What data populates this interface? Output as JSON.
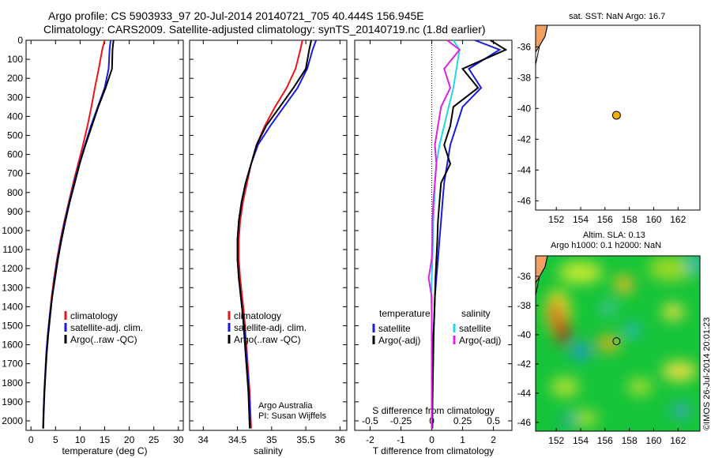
{
  "title_line1": "Argo profile: CS 5903933_97 20-Jul-2014 20140721_705 40.444S 156.945E",
  "title_line2": "Climatology: CARS2009. Satellite-adjusted climatology: synTS_20140719.nc (1.8d earlier)",
  "sst_title": "sat. SST: NaN Argo: 16.7",
  "sla_title1": "Altim. SLA: 0.13",
  "sla_title2": "Argo h1000: 0.1 h2000: NaN",
  "timestamp": "©IMOS 26-Jul-2014 20:01:23",
  "credits": {
    "line1": "Argo Australia",
    "line2": "PI: Susan Wijffels"
  },
  "colors": {
    "clim": "#e8141a",
    "sat": "#1a1ae0",
    "argo": "#000000",
    "sat_s": "#22d6e6",
    "argo_s": "#e020e0",
    "land": "#f0a060"
  },
  "chart_data": [
    {
      "type": "line",
      "xlabel": "temperature (deg C)",
      "xlim": [
        -1,
        31
      ],
      "xticks": [
        0,
        5,
        10,
        15,
        20,
        25,
        30
      ],
      "ylim": [
        2050,
        0
      ],
      "yticks": [
        0,
        100,
        200,
        300,
        400,
        500,
        600,
        700,
        800,
        900,
        1000,
        1100,
        1200,
        1300,
        1400,
        1500,
        1600,
        1700,
        1800,
        1900,
        2000
      ],
      "legend": [
        "climatology",
        "satellite-adj. clim.",
        "Argo(..raw -QC)"
      ],
      "series": [
        {
          "name": "climatology",
          "color": "clim",
          "x": [
            15.0,
            14.5,
            13.8,
            13.0,
            12.3,
            11.5,
            10.6,
            9.6,
            8.6,
            7.7,
            6.8,
            6.0,
            5.3,
            4.7,
            4.2,
            3.8,
            3.4,
            3.1,
            2.9,
            2.7,
            2.55,
            2.45
          ],
          "y": [
            0,
            50,
            150,
            250,
            350,
            450,
            550,
            650,
            750,
            850,
            950,
            1050,
            1150,
            1250,
            1350,
            1450,
            1550,
            1650,
            1750,
            1850,
            1950,
            2040
          ]
        },
        {
          "name": "satellite-adj. clim.",
          "color": "sat",
          "x": [
            16.2,
            16.0,
            15.8,
            15.0,
            13.6,
            12.2,
            11.0,
            9.8,
            8.8,
            7.8,
            6.9,
            6.1,
            5.4,
            4.8,
            4.3,
            3.8,
            3.4,
            3.1,
            2.9,
            2.7,
            2.55,
            2.45
          ],
          "y": [
            0,
            50,
            150,
            250,
            350,
            450,
            550,
            650,
            750,
            850,
            950,
            1050,
            1150,
            1250,
            1350,
            1450,
            1550,
            1650,
            1750,
            1850,
            1950,
            2040
          ]
        },
        {
          "name": "Argo(..raw -QC)",
          "color": "argo",
          "x": [
            16.8,
            16.6,
            16.5,
            15.2,
            13.7,
            12.4,
            11.1,
            9.9,
            8.9,
            7.9,
            7.0,
            6.2,
            5.5,
            4.9,
            4.3,
            3.9,
            3.5,
            3.2,
            2.95,
            2.75,
            2.6,
            2.5
          ],
          "y": [
            0,
            50,
            150,
            250,
            350,
            450,
            550,
            650,
            750,
            850,
            950,
            1050,
            1150,
            1250,
            1350,
            1450,
            1550,
            1650,
            1750,
            1850,
            1950,
            2040
          ]
        }
      ]
    },
    {
      "type": "line",
      "xlabel": "salinity",
      "xlim": [
        33.8,
        36.1
      ],
      "xticks": [
        34,
        34.5,
        35,
        35.5,
        36
      ],
      "ylim": [
        2050,
        0
      ],
      "legend": [
        "climatology",
        "satellite-adj. clim.",
        "Argo(..raw -QC)"
      ],
      "series": [
        {
          "name": "climatology",
          "color": "clim",
          "x": [
            35.45,
            35.42,
            35.35,
            35.22,
            35.05,
            34.9,
            34.78,
            34.7,
            34.64,
            34.58,
            34.54,
            34.52,
            34.52,
            34.54,
            34.57,
            34.6,
            34.62,
            34.64,
            34.66,
            34.68,
            34.69,
            34.7
          ],
          "y": [
            0,
            50,
            150,
            250,
            350,
            450,
            550,
            650,
            750,
            850,
            950,
            1050,
            1150,
            1250,
            1350,
            1450,
            1550,
            1650,
            1750,
            1850,
            1950,
            2040
          ]
        },
        {
          "name": "satellite-adj. clim.",
          "color": "sat",
          "x": [
            35.65,
            35.6,
            35.52,
            35.38,
            35.18,
            34.98,
            34.8,
            34.7,
            34.62,
            34.56,
            34.52,
            34.5,
            34.5,
            34.52,
            34.55,
            34.58,
            34.61,
            34.63,
            34.65,
            34.67,
            34.68,
            34.69
          ],
          "y": [
            0,
            50,
            150,
            250,
            350,
            450,
            550,
            650,
            750,
            850,
            950,
            1050,
            1150,
            1250,
            1350,
            1450,
            1550,
            1650,
            1750,
            1850,
            1950,
            2040
          ]
        },
        {
          "name": "Argo(..raw -QC)",
          "color": "argo",
          "x": [
            35.58,
            35.55,
            35.5,
            35.32,
            35.12,
            34.92,
            34.78,
            34.7,
            34.62,
            34.56,
            34.52,
            34.5,
            34.5,
            34.52,
            34.55,
            34.58,
            34.6,
            34.62,
            34.64,
            34.66,
            34.67,
            34.68
          ],
          "y": [
            0,
            50,
            150,
            250,
            350,
            450,
            550,
            650,
            750,
            850,
            950,
            1050,
            1150,
            1250,
            1350,
            1450,
            1550,
            1650,
            1750,
            1850,
            1950,
            2040
          ]
        }
      ]
    },
    {
      "type": "line",
      "xlabel": "T difference from climatology",
      "xlabel_top": "S difference from climatology",
      "xlim": [
        -2.5,
        2.6
      ],
      "xticks": [
        -2,
        -1,
        0,
        1,
        2
      ],
      "xticks_top": [
        "-0.5",
        "-0.25",
        "0",
        "0.25",
        "0.5"
      ],
      "ylim": [
        2050,
        0
      ],
      "legend_titles": [
        "temperature",
        "salinity"
      ],
      "legend": [
        "satellite",
        "Argo(-adj)",
        "satellite",
        "Argo(-adj)"
      ],
      "series": [
        {
          "name": "satellite",
          "color": "sat",
          "x": [
            1.4,
            2.2,
            1.2,
            1.6,
            1.0,
            0.8,
            0.6,
            0.5,
            0.4,
            0.35,
            0.3,
            0.25,
            0.2,
            0.15,
            0.1,
            0.08,
            0.05,
            0.05,
            0.03,
            0.02,
            0.02,
            0.02
          ],
          "y": [
            0,
            50,
            150,
            250,
            350,
            450,
            550,
            650,
            750,
            850,
            950,
            1050,
            1150,
            1250,
            1350,
            1450,
            1550,
            1650,
            1750,
            1850,
            1950,
            2040
          ]
        },
        {
          "name": "Argo(-adj)",
          "color": "argo",
          "x": [
            1.9,
            2.4,
            1.0,
            1.5,
            0.7,
            0.6,
            0.4,
            0.6,
            0.3,
            0.25,
            0.2,
            0.18,
            0.15,
            0.12,
            0.1,
            0.08,
            0.06,
            0.05,
            0.04,
            0.03,
            0.02,
            0.02
          ],
          "y": [
            0,
            50,
            150,
            250,
            350,
            450,
            550,
            650,
            750,
            850,
            950,
            1050,
            1150,
            1250,
            1350,
            1450,
            1550,
            1650,
            1750,
            1850,
            1950,
            2040
          ]
        },
        {
          "name": "satellite",
          "color": "sat_s",
          "x": [
            0.7,
            0.9,
            0.8,
            0.7,
            0.55,
            0.4,
            0.25,
            0.15,
            0.1,
            0.08,
            0.05,
            0.04,
            0.02,
            0.0,
            -0.02,
            0.0,
            0.0,
            0.0,
            0.0,
            0.0,
            0.0,
            0.0
          ],
          "y": [
            0,
            50,
            150,
            250,
            350,
            450,
            550,
            650,
            750,
            850,
            950,
            1050,
            1150,
            1250,
            1350,
            1450,
            1550,
            1650,
            1750,
            1850,
            1950,
            2040
          ]
        },
        {
          "name": "Argo(-adj)",
          "color": "argo_s",
          "x": [
            0.5,
            0.9,
            0.4,
            0.6,
            0.3,
            0.2,
            0.1,
            0.15,
            0.1,
            0.05,
            0.02,
            0.02,
            0.0,
            -0.1,
            0.0,
            0.0,
            0.0,
            0.0,
            0.0,
            0.0,
            0.0,
            0.0
          ],
          "y": [
            0,
            50,
            150,
            250,
            350,
            450,
            550,
            650,
            750,
            850,
            950,
            1050,
            1150,
            1250,
            1350,
            1450,
            1550,
            1650,
            1750,
            1850,
            1950,
            2040
          ]
        }
      ]
    },
    {
      "type": "scatter",
      "title": "sat. SST: NaN Argo: 16.7",
      "xlim": [
        150.3,
        163.8
      ],
      "ylim": [
        -46.6,
        -34.6
      ],
      "xticks": [
        152,
        154,
        156,
        158,
        160,
        162
      ],
      "yticks": [
        -36,
        -38,
        -40,
        -42,
        -44,
        -46
      ],
      "points": [
        {
          "x": 156.945,
          "y": -40.444
        }
      ]
    },
    {
      "type": "heatmap",
      "title": "Altim. SLA: 0.13",
      "xlim": [
        150.3,
        163.8
      ],
      "ylim": [
        -46.6,
        -34.6
      ],
      "xticks": [
        152,
        154,
        156,
        158,
        160,
        162
      ],
      "yticks": [
        -36,
        -38,
        -40,
        -42,
        -44,
        -46
      ],
      "points": [
        {
          "x": 156.945,
          "y": -40.444
        }
      ]
    }
  ]
}
